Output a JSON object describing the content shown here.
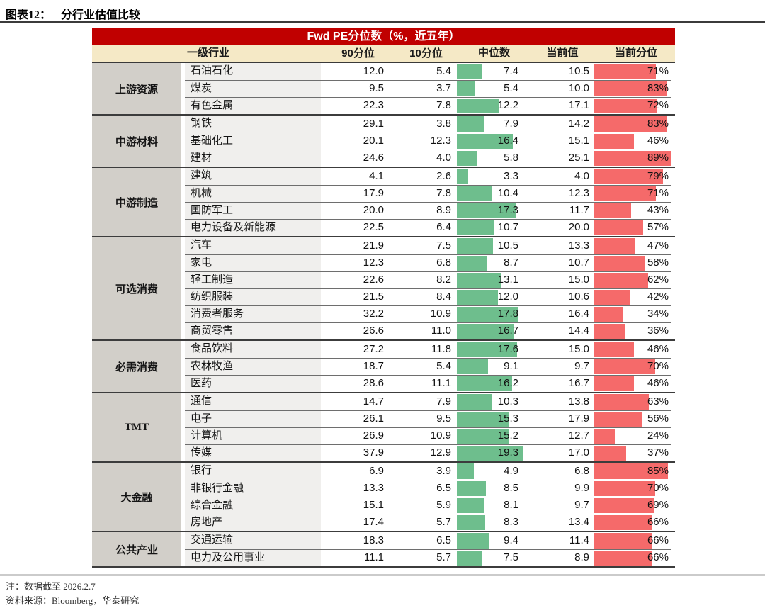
{
  "figure": {
    "label": "图表12：",
    "title": "分行业估值比较"
  },
  "colors": {
    "banner_red": "#C00000",
    "header_cream": "#F5E9C6",
    "group_gray": "#D2CFC9",
    "industry_gray": "#F0EFED",
    "bar_green": "#6EBE8D",
    "bar_red": "#F56A6A"
  },
  "chart_data": {
    "type": "table",
    "title": "Fwd PE分位数（%，近五年）",
    "columns": [
      "一级行业",
      "90分位",
      "10分位",
      "中位数",
      "当前值",
      "当前分位"
    ],
    "bar_notes": "中位数列为绿色数据条（0至最大值19.3），当前分位列为红色数据条（0至最大值89%）",
    "groups": [
      {
        "name": "上游资源",
        "rows": [
          {
            "industry": "石油石化",
            "p90": "12.0",
            "p10": "5.4",
            "median": "7.4",
            "current": "10.5",
            "pct_label": "71%"
          },
          {
            "industry": "煤炭",
            "p90": "9.5",
            "p10": "3.7",
            "median": "5.4",
            "current": "10.0",
            "pct_label": "83%"
          },
          {
            "industry": "有色金属",
            "p90": "22.3",
            "p10": "7.8",
            "median": "12.2",
            "current": "17.1",
            "pct_label": "72%"
          }
        ]
      },
      {
        "name": "中游材料",
        "rows": [
          {
            "industry": "钢铁",
            "p90": "29.1",
            "p10": "3.8",
            "median": "7.9",
            "current": "14.2",
            "pct_label": "83%"
          },
          {
            "industry": "基础化工",
            "p90": "20.1",
            "p10": "12.3",
            "median": "16.4",
            "current": "15.1",
            "pct_label": "46%"
          },
          {
            "industry": "建材",
            "p90": "24.6",
            "p10": "4.0",
            "median": "5.8",
            "current": "25.1",
            "pct_label": "89%"
          }
        ]
      },
      {
        "name": "中游制造",
        "rows": [
          {
            "industry": "建筑",
            "p90": "4.1",
            "p10": "2.6",
            "median": "3.3",
            "current": "4.0",
            "pct_label": "79%"
          },
          {
            "industry": "机械",
            "p90": "17.9",
            "p10": "7.8",
            "median": "10.4",
            "current": "12.3",
            "pct_label": "71%"
          },
          {
            "industry": "国防军工",
            "p90": "20.0",
            "p10": "8.9",
            "median": "17.3",
            "current": "11.7",
            "pct_label": "43%"
          },
          {
            "industry": "电力设备及新能源",
            "p90": "22.5",
            "p10": "6.4",
            "median": "10.7",
            "current": "20.0",
            "pct_label": "57%"
          }
        ]
      },
      {
        "name": "可选消费",
        "rows": [
          {
            "industry": "汽车",
            "p90": "21.9",
            "p10": "7.5",
            "median": "10.5",
            "current": "13.3",
            "pct_label": "47%"
          },
          {
            "industry": "家电",
            "p90": "12.3",
            "p10": "6.8",
            "median": "8.7",
            "current": "10.7",
            "pct_label": "58%"
          },
          {
            "industry": "轻工制造",
            "p90": "22.6",
            "p10": "8.2",
            "median": "13.1",
            "current": "15.0",
            "pct_label": "62%"
          },
          {
            "industry": "纺织服装",
            "p90": "21.5",
            "p10": "8.4",
            "median": "12.0",
            "current": "10.6",
            "pct_label": "42%"
          },
          {
            "industry": "消费者服务",
            "p90": "32.2",
            "p10": "10.9",
            "median": "17.8",
            "current": "16.4",
            "pct_label": "34%"
          },
          {
            "industry": "商贸零售",
            "p90": "26.6",
            "p10": "11.0",
            "median": "16.7",
            "current": "14.4",
            "pct_label": "36%"
          }
        ]
      },
      {
        "name": "必需消费",
        "rows": [
          {
            "industry": "食品饮料",
            "p90": "27.2",
            "p10": "11.8",
            "median": "17.6",
            "current": "15.0",
            "pct_label": "46%"
          },
          {
            "industry": "农林牧渔",
            "p90": "18.7",
            "p10": "5.4",
            "median": "9.1",
            "current": "9.7",
            "pct_label": "70%"
          },
          {
            "industry": "医药",
            "p90": "28.6",
            "p10": "11.1",
            "median": "16.2",
            "current": "16.7",
            "pct_label": "46%"
          }
        ]
      },
      {
        "name": "TMT",
        "rows": [
          {
            "industry": "通信",
            "p90": "14.7",
            "p10": "7.9",
            "median": "10.3",
            "current": "13.8",
            "pct_label": "63%"
          },
          {
            "industry": "电子",
            "p90": "26.1",
            "p10": "9.5",
            "median": "15.3",
            "current": "17.9",
            "pct_label": "56%"
          },
          {
            "industry": "计算机",
            "p90": "26.9",
            "p10": "10.9",
            "median": "15.2",
            "current": "12.7",
            "pct_label": "24%"
          },
          {
            "industry": "传媒",
            "p90": "37.9",
            "p10": "12.9",
            "median": "19.3",
            "current": "17.0",
            "pct_label": "37%"
          }
        ]
      },
      {
        "name": "大金融",
        "rows": [
          {
            "industry": "银行",
            "p90": "6.9",
            "p10": "3.9",
            "median": "4.9",
            "current": "6.8",
            "pct_label": "85%"
          },
          {
            "industry": "非银行金融",
            "p90": "13.3",
            "p10": "6.5",
            "median": "8.5",
            "current": "9.9",
            "pct_label": "70%"
          },
          {
            "industry": "综合金融",
            "p90": "15.1",
            "p10": "5.9",
            "median": "8.1",
            "current": "9.7",
            "pct_label": "69%"
          },
          {
            "industry": "房地产",
            "p90": "17.4",
            "p10": "5.7",
            "median": "8.3",
            "current": "13.4",
            "pct_label": "66%"
          }
        ]
      },
      {
        "name": "公共产业",
        "rows": [
          {
            "industry": "交通运输",
            "p90": "18.3",
            "p10": "6.5",
            "median": "9.4",
            "current": "11.4",
            "pct_label": "66%"
          },
          {
            "industry": "电力及公用事业",
            "p90": "11.1",
            "p10": "5.7",
            "median": "7.5",
            "current": "8.9",
            "pct_label": "66%"
          }
        ]
      }
    ]
  },
  "notes": {
    "line1": "注：数据截至 2026.2.7",
    "line2": "资料来源：Bloomberg，华泰研究"
  }
}
